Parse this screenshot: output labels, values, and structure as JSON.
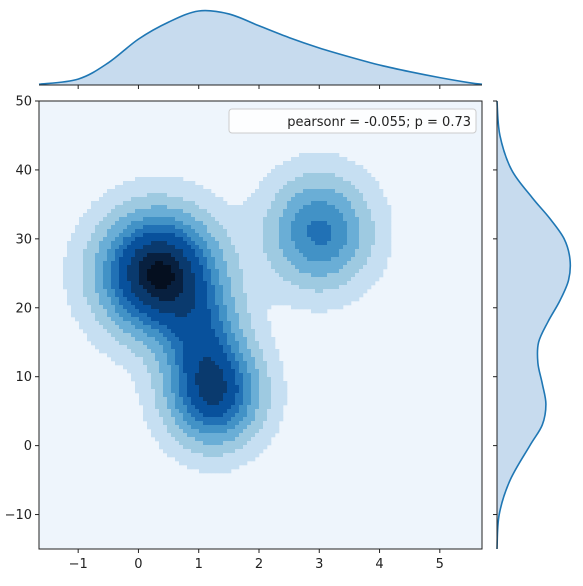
{
  "chart_data": {
    "type": "jointplot-kde",
    "x_range": [
      -1.65,
      5.7
    ],
    "y_range": [
      -15,
      50
    ],
    "x_ticks": [
      -1,
      0,
      1,
      2,
      3,
      4,
      5
    ],
    "y_ticks": [
      -10,
      0,
      10,
      20,
      30,
      40,
      50
    ],
    "legend": {
      "text": "pearsonr = -0.055; p = 0.73",
      "placement": "upper right"
    },
    "colors": {
      "levels": [
        "#eef5fc",
        "#c6dff2",
        "#9ecae1",
        "#6aaed6",
        "#4292c6",
        "#2171b5",
        "#08519c",
        "#0a3a6e",
        "#08203f",
        "#050f1f"
      ],
      "marginal_line": "#1f77b4",
      "marginal_fill": "#c7dbee"
    },
    "blobs": [
      {
        "cx": 0.33,
        "cy": 25,
        "sx": 0.62,
        "sy": 5.6,
        "w": 1.0
      },
      {
        "cx": 1.25,
        "cy": 7.5,
        "sx": 0.5,
        "sy": 4.8,
        "w": 0.7
      },
      {
        "cx": 3.0,
        "cy": 31,
        "sx": 0.55,
        "sy": 5.2,
        "w": 0.48
      },
      {
        "cx": 1.05,
        "cy": 16,
        "sx": 0.45,
        "sy": 5.0,
        "w": 0.38
      }
    ],
    "thresholds": [
      0.04,
      0.12,
      0.22,
      0.33,
      0.44,
      0.55,
      0.7,
      0.85,
      0.95
    ],
    "x_marginal_density": {
      "x": [
        -1.65,
        -1.0,
        -0.5,
        0.0,
        0.5,
        1.0,
        1.5,
        2.0,
        2.5,
        3.0,
        3.5,
        4.0,
        4.5,
        5.0,
        5.5,
        5.7
      ],
      "y": [
        0.01,
        0.08,
        0.3,
        0.62,
        0.85,
        1.0,
        0.96,
        0.8,
        0.64,
        0.5,
        0.38,
        0.27,
        0.18,
        0.1,
        0.03,
        0.01
      ]
    },
    "y_marginal_density": {
      "y": [
        -15,
        -10,
        -5,
        0,
        3,
        6,
        9,
        12,
        15,
        18,
        21,
        24,
        27,
        30,
        33,
        36,
        40,
        45,
        50
      ],
      "d": [
        0.0,
        0.03,
        0.18,
        0.45,
        0.62,
        0.67,
        0.62,
        0.56,
        0.57,
        0.7,
        0.86,
        0.98,
        1.0,
        0.92,
        0.72,
        0.48,
        0.2,
        0.04,
        0.0
      ]
    }
  }
}
